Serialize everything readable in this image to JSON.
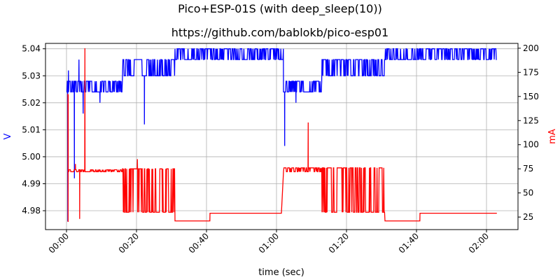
{
  "chart_data": {
    "type": "line",
    "title": "Pico+ESP-01S (with deep_sleep(10))",
    "subtitle": "https://github.com/bablokb/pico-esp01",
    "xlabel": "time (sec)",
    "ylabel_left": "V",
    "ylabel_right": "mA",
    "x_unit": "seconds",
    "xlim": [
      -6,
      129
    ],
    "ylim_left": [
      4.973,
      5.042
    ],
    "ylim_right": [
      12,
      205
    ],
    "x_ticks": [
      {
        "value": 0,
        "label": "00:00"
      },
      {
        "value": 20,
        "label": "00:20"
      },
      {
        "value": 40,
        "label": "00:40"
      },
      {
        "value": 60,
        "label": "01:00"
      },
      {
        "value": 80,
        "label": "01:20"
      },
      {
        "value": 100,
        "label": "01:40"
      },
      {
        "value": 120,
        "label": "02:00"
      }
    ],
    "y_ticks_left": [
      "4.98",
      "4.99",
      "5.00",
      "5.01",
      "5.02",
      "5.03",
      "5.04"
    ],
    "y_ticks_right": [
      "25",
      "50",
      "75",
      "100",
      "125",
      "150",
      "175",
      "200"
    ],
    "grid": true,
    "legend": "none",
    "series": [
      {
        "axis": "left",
        "color": "#0000ff",
        "segments": [
          {
            "start": 0,
            "end": 16,
            "low": 5.024,
            "high": 5.028
          },
          {
            "start": 16,
            "end": 31,
            "low": 5.03,
            "high": 5.036
          },
          {
            "start": 31,
            "end": 62,
            "low": 5.036,
            "high": 5.04
          },
          {
            "start": 62,
            "end": 73,
            "low": 5.024,
            "high": 5.028
          },
          {
            "start": 73,
            "end": 91,
            "low": 5.03,
            "high": 5.036
          },
          {
            "start": 91,
            "end": 123,
            "low": 5.036,
            "high": 5.04
          }
        ],
        "spikes": [
          {
            "x": 0.3,
            "y": 4.976
          },
          {
            "x": 0.5,
            "y": 5.032
          },
          {
            "x": 2.2,
            "y": 4.992
          },
          {
            "x": 3.5,
            "y": 5.036
          },
          {
            "x": 4.7,
            "y": 5.016
          },
          {
            "x": 9.5,
            "y": 5.02
          },
          {
            "x": 22.2,
            "y": 5.012
          },
          {
            "x": 62.3,
            "y": 5.004
          },
          {
            "x": 65.5,
            "y": 5.02
          }
        ]
      },
      {
        "axis": "right",
        "color": "#ff0000",
        "segments": [
          {
            "start": 0.5,
            "end": 16,
            "low": 72,
            "high": 74
          },
          {
            "start": 16,
            "end": 31,
            "low": 30,
            "high": 75
          },
          {
            "start": 31,
            "end": 41,
            "low": 21,
            "high": 21
          },
          {
            "start": 41,
            "end": 61.5,
            "low": 29,
            "high": 29
          },
          {
            "start": 62,
            "end": 73,
            "low": 72,
            "high": 76
          },
          {
            "start": 73,
            "end": 91,
            "low": 30,
            "high": 76
          },
          {
            "start": 91,
            "end": 101,
            "low": 21,
            "high": 21
          },
          {
            "start": 101,
            "end": 123,
            "low": 29,
            "high": 29
          }
        ],
        "spikes": [
          {
            "x": 0.2,
            "y": 152
          },
          {
            "x": 0.4,
            "y": 20
          },
          {
            "x": 2.5,
            "y": 80
          },
          {
            "x": 3.7,
            "y": 23
          },
          {
            "x": 5.2,
            "y": 200
          },
          {
            "x": 20.2,
            "y": 85
          },
          {
            "x": 69,
            "y": 123
          }
        ]
      }
    ]
  }
}
